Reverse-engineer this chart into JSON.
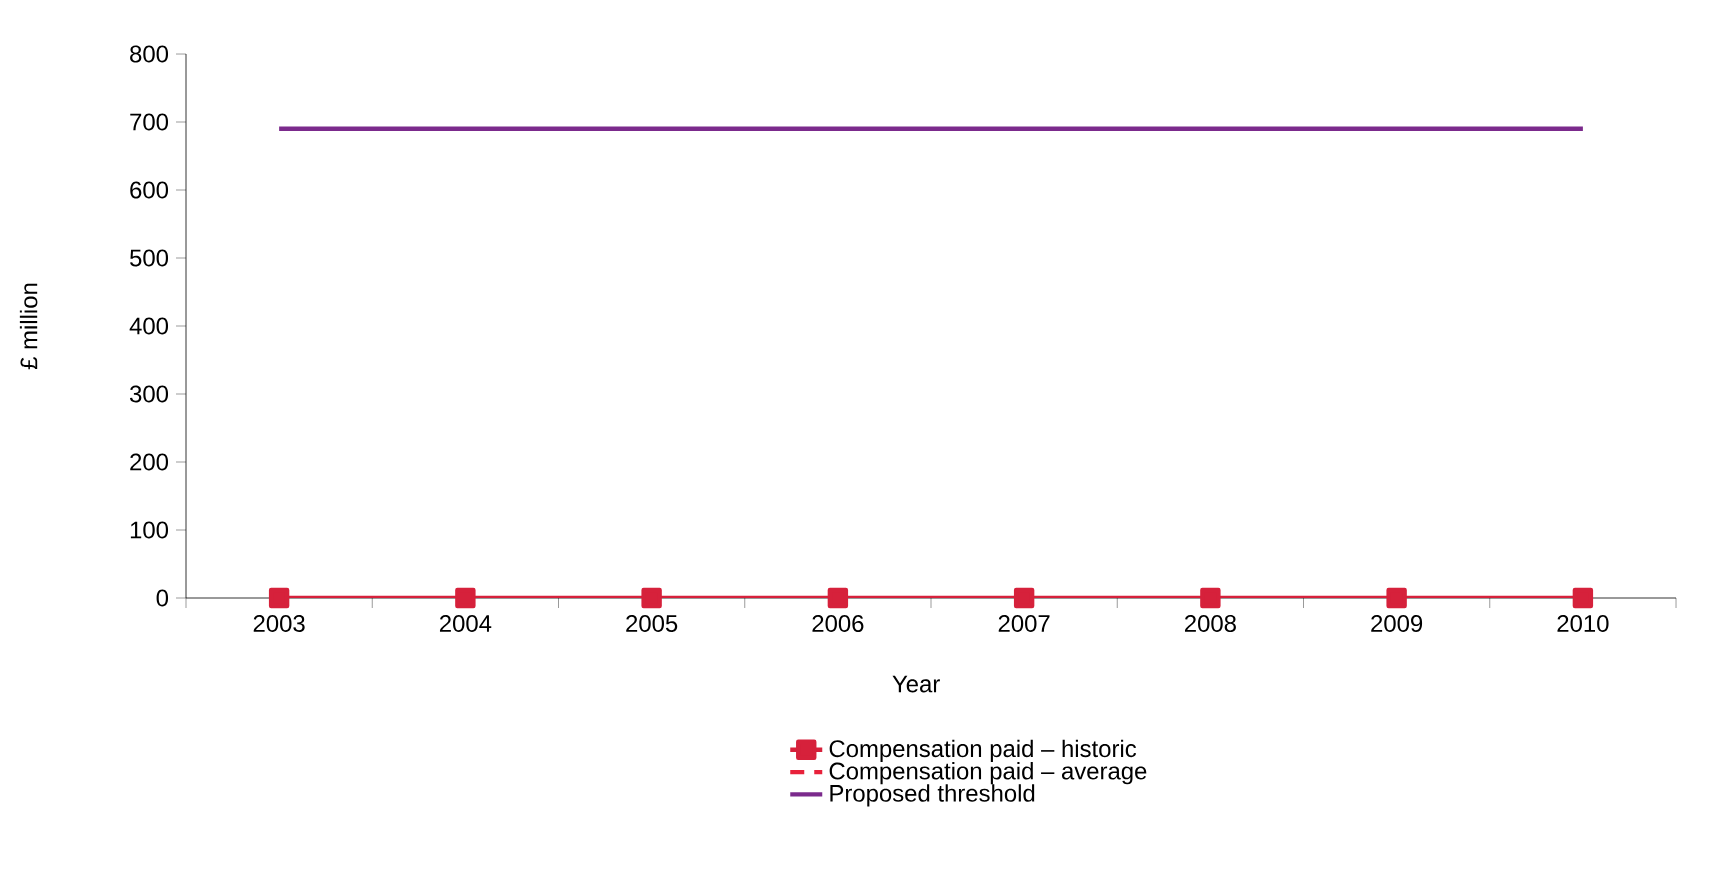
{
  "chart_data": {
    "type": "line",
    "xlabel": "Year",
    "ylabel": "£ million",
    "categories": [
      "2003",
      "2004",
      "2005",
      "2006",
      "2007",
      "2008",
      "2009",
      "2010"
    ],
    "series": [
      {
        "name": "Compensation paid – historic",
        "color": "#d6213b",
        "values": [
          0,
          0,
          0,
          0,
          0,
          0,
          0,
          0
        ],
        "marker": "square",
        "line_style": "solid"
      },
      {
        "name": "Compensation paid – average",
        "color": "#e8213b",
        "values": [
          null,
          null,
          null,
          null,
          null,
          null,
          null,
          null
        ],
        "marker": "none",
        "line_style": "dashed"
      },
      {
        "name": "Proposed threshold",
        "color": "#7b2a8c",
        "values": [
          690,
          690,
          690,
          690,
          690,
          690,
          690,
          690
        ],
        "marker": "none",
        "line_style": "solid"
      }
    ],
    "ylim": [
      0,
      800
    ],
    "yticks": [
      0,
      100,
      200,
      300,
      400,
      500,
      600,
      700,
      800
    ],
    "grid": false,
    "legend": "bottom"
  }
}
